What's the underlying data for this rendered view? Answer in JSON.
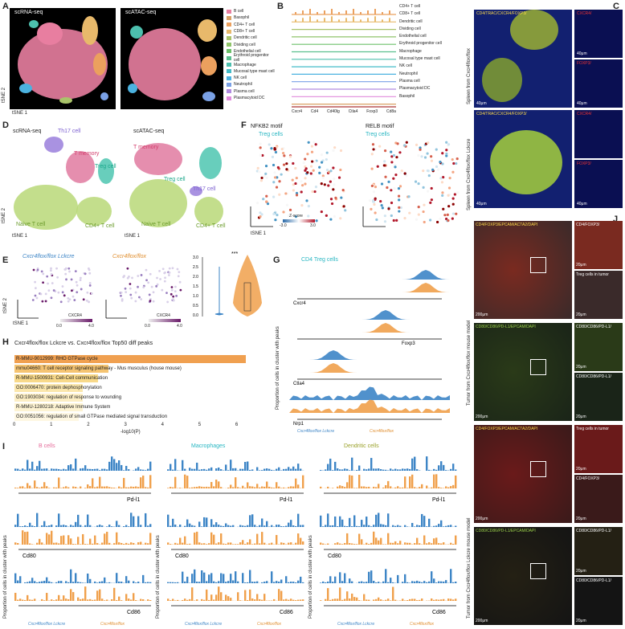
{
  "panels": {
    "a": {
      "label": "A",
      "scrna": "scRNA-seq",
      "scatac": "scATAC-seq",
      "xlabel": "tSNE 1",
      "ylabel": "tSNE 2"
    },
    "b": {
      "label": "B",
      "cell_types": [
        "CD4+ T cell",
        "CD8+ T cell",
        "Dendritic cell",
        "Dividing cell",
        "Endothelial cell",
        "Erythroid progenitor cell",
        "Macrophage",
        "Mucosal type mast cell",
        "NK cell",
        "Neutrophil",
        "Plasma cell",
        "Plasmacytoid DC",
        "Basophil"
      ],
      "genes": [
        "Cxcr4",
        "Cd4",
        "Cd40lg",
        "Ctla4",
        "Foxp3",
        "Cd8a"
      ]
    },
    "legend_a": {
      "items": [
        {
          "name": "B cell",
          "color": "#e87ea0"
        },
        {
          "name": "Basophil",
          "color": "#d9a064"
        },
        {
          "name": "CD4+ T cell",
          "color": "#eba05e"
        },
        {
          "name": "CD8+ T cell",
          "color": "#e8b96b"
        },
        {
          "name": "Dendritic cell",
          "color": "#a9c36a"
        },
        {
          "name": "Dividing cell",
          "color": "#8fc46a"
        },
        {
          "name": "Endothelial cell",
          "color": "#6cc06a"
        },
        {
          "name": "Erythroid progenitor cell",
          "color": "#5abf8e"
        },
        {
          "name": "Macrophage",
          "color": "#4dbfae"
        },
        {
          "name": "Mucosal type mast cell",
          "color": "#44bcc9"
        },
        {
          "name": "NK cell",
          "color": "#4bb2e0"
        },
        {
          "name": "Neutrophil",
          "color": "#7aa1e6"
        },
        {
          "name": "Plasma cell",
          "color": "#b08ae0"
        },
        {
          "name": "Plasmacytoid DC",
          "color": "#e08adc"
        }
      ]
    },
    "c": {
      "label": "C",
      "stain1": "CD4/TRAC/CXCR4/FOXP3/",
      "side_cxcr4": "CXCR4/",
      "side_foxp3": "FOXP3/",
      "spleen1": "Spleen from Cxcr4flox/flox",
      "spleen2": "Spleen from Cxcr4flox/flox Lckcre",
      "scale": "40μm"
    },
    "d": {
      "label": "D",
      "scrna": "scRNA-seq",
      "scatac": "scATAC-seq",
      "th17": "Th17 cell",
      "tmem": "T memory",
      "treg": "Treg cell",
      "naive": "Naive T cell",
      "cd4": "CD4+ T cell",
      "xlabel": "tSNE 1",
      "ylabel": "tSNE 2"
    },
    "e": {
      "label": "E",
      "g1": "Cxcr4flox/flox Lckcre",
      "g2": "Cxcr4flox/flox",
      "scale_lbl": "CXCR4",
      "scale_min": "0.0",
      "scale_max": "4.0",
      "sig": "***",
      "yticks": [
        "0.0",
        "0.5",
        "1.0",
        "1.5",
        "2.0",
        "2.5",
        "3.0"
      ],
      "xlabel": "tSNE 1",
      "ylabel": "tSNE 2"
    },
    "f": {
      "label": "F",
      "m1": "NFKB2 motif",
      "m2": "RELB motif",
      "sub": "Treg cells",
      "zlbl": "Z-score",
      "zmin": "-3.0",
      "zmax": "3.0",
      "xlabel": "tSNE 1",
      "ylabel": "tSNE 2"
    },
    "g": {
      "label": "G",
      "title": "CD4 Treg cells",
      "genes": [
        "Cxcr4",
        "Foxp3",
        "Ctla4",
        "Nrp1"
      ],
      "ylabel": "Proportion of cells in cluster with peaks",
      "legend1": "Cxcr4flox/flox Lckcre",
      "legend2": "Cxcr4flox/flox"
    },
    "h": {
      "label": "H",
      "title": "Cxcr4flox/flox Lckcre  vs.  Cxcr4flox/flox   Top50 diff peaks",
      "xlabel": "-log10(P)",
      "xticks": [
        "0",
        "1",
        "2",
        "3",
        "4",
        "5",
        "6"
      ]
    },
    "i": {
      "label": "I",
      "titles": [
        "B cells",
        "Macrophages",
        "Dendritic cells"
      ],
      "genes": [
        "Pd-l1",
        "Cd80",
        "Cd86"
      ],
      "ylabel": "Proportion of cells in cluster with peaks",
      "legend1": "Cxcr4flox/flox Lckcre",
      "legend2": "Cxcr4flox/flox"
    },
    "j": {
      "label": "J",
      "stain1": "CD4/FOXP3/EPCAM/ACTA2/DAPI",
      "stain2": "CD80/CD86/PD-L1/EPCAM/DAPI",
      "treg_tumor": "Treg cells in tumor",
      "side_foxp3": "CD4/FOXP3/",
      "side_cd80": "CD80/CD86/PD-L1/",
      "side_cd80b": "CD80/CD86/PD-L1/",
      "model1": "Tumor from Cxcr4flox/flox mouse model",
      "model2": "Tumor from Cxcr4flox/flox Lckcre mouse model",
      "scale_big": "200μm",
      "scale_small": "20μm"
    }
  },
  "colors": {
    "blue": "#3d85c6",
    "orange": "#f0a04b",
    "pink": "#e58aa6"
  },
  "chart_data": {
    "type": "bar",
    "title": "Cxcr4flox/flox Lckcre vs. Cxcr4flox/flox Top50 diff peaks",
    "categories": [
      "R-MMU-9012999: RHO GTPase cycle",
      "mmu04660: T cell receptor signaling pathway - Mus musculus (house mouse)",
      "R-MMU-1500931: Cell-Cell communication",
      "GO:0006470: protein dephosphorylation",
      "GO:1903034: regulation of response to wounding",
      "R-MMU-1280218: Adaptive Immune System",
      "GO:0051056: regulation of small GTPase mediated signal transduction"
    ],
    "values": [
      6.2,
      2.5,
      2.2,
      1.8,
      1.8,
      1.8,
      1.7
    ],
    "colors": [
      "#f0a050",
      "#f5c472",
      "#f8d98a",
      "#fbe7ad",
      "#fceec4",
      "#fdf3d2",
      "#fef7e2"
    ],
    "xlabel": "-log10(P)",
    "xlim": [
      0,
      6.5
    ]
  }
}
